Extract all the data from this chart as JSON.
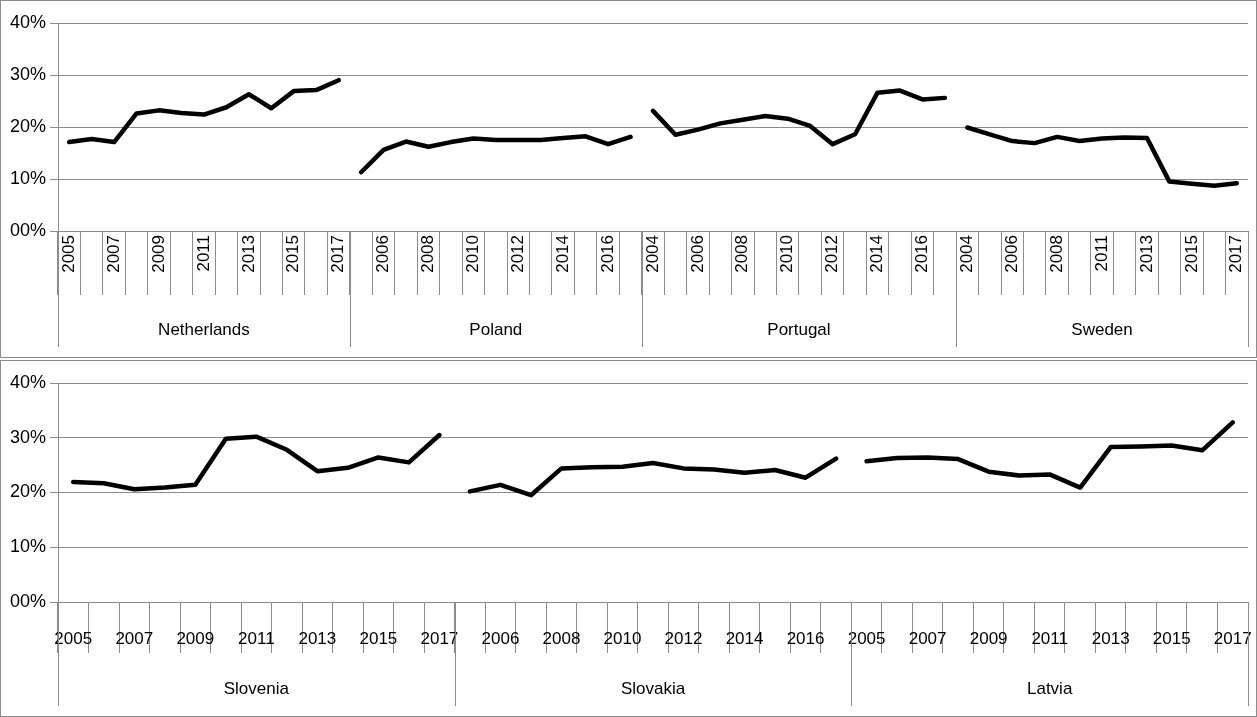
{
  "chart_data": [
    {
      "type": "line",
      "categories": [
        "2005",
        null,
        "2007",
        null,
        "2009",
        null,
        "2011",
        null,
        "2013",
        null,
        "2015",
        null,
        "2017",
        null,
        "2006",
        null,
        "2008",
        null,
        "2010",
        null,
        "2012",
        null,
        "2014",
        null,
        "2016",
        null,
        "2004",
        null,
        "2006",
        null,
        "2008",
        null,
        "2010",
        null,
        "2012",
        null,
        "2014",
        null,
        "2016",
        null,
        "2004",
        null,
        "2006",
        null,
        "2008",
        null,
        "2011",
        null,
        "2013",
        null,
        "2015",
        null,
        "2017"
      ],
      "series": [
        {
          "color": "#000000",
          "values": [
            17.1,
            17.7,
            17.1,
            22.6,
            23.2,
            22.7,
            22.4,
            23.8,
            26.3,
            23.6,
            26.9,
            27.1,
            29.0,
            null,
            null,
            null,
            null,
            null,
            null,
            null,
            null,
            null,
            null,
            null,
            null,
            null,
            null,
            null,
            null,
            null,
            null,
            null,
            null,
            null,
            null,
            null,
            null,
            null,
            null,
            null,
            null,
            null,
            null,
            null,
            null,
            null,
            null,
            null,
            null,
            null,
            null,
            null,
            null
          ]
        },
        {
          "color": "#000000",
          "values": [
            null,
            null,
            null,
            null,
            null,
            null,
            null,
            null,
            null,
            null,
            null,
            null,
            null,
            11.3,
            15.6,
            17.2,
            16.2,
            17.1,
            17.8,
            17.5,
            17.5,
            17.5,
            17.9,
            18.2,
            16.7,
            18.1,
            null,
            null,
            null,
            null,
            null,
            null,
            null,
            null,
            null,
            null,
            null,
            null,
            null,
            null,
            null,
            null,
            null,
            null,
            null,
            null,
            null,
            null,
            null,
            null,
            null,
            null,
            null
          ]
        },
        {
          "color": "#000000",
          "values": [
            null,
            null,
            null,
            null,
            null,
            null,
            null,
            null,
            null,
            null,
            null,
            null,
            null,
            null,
            null,
            null,
            null,
            null,
            null,
            null,
            null,
            null,
            null,
            null,
            null,
            null,
            23.1,
            18.5,
            19.5,
            20.7,
            21.4,
            22.1,
            21.6,
            20.2,
            16.7,
            18.6,
            26.6,
            27.0,
            25.3,
            25.6,
            null,
            null,
            null,
            null,
            null,
            null,
            null,
            null,
            null,
            null,
            null,
            null,
            null
          ]
        },
        {
          "color": "#000000",
          "values": [
            null,
            null,
            null,
            null,
            null,
            null,
            null,
            null,
            null,
            null,
            null,
            null,
            null,
            null,
            null,
            null,
            null,
            null,
            null,
            null,
            null,
            null,
            null,
            null,
            null,
            null,
            null,
            null,
            null,
            null,
            null,
            null,
            null,
            null,
            null,
            null,
            null,
            null,
            null,
            null,
            19.9,
            18.6,
            17.3,
            16.9,
            18.1,
            17.3,
            17.8,
            18.0,
            17.9,
            9.5,
            9.1,
            8.7,
            9.2
          ]
        }
      ],
      "ylim": [
        0,
        40
      ],
      "yticks": [
        {
          "value": 0,
          "label": "00%"
        },
        {
          "value": 10,
          "label": "10%"
        },
        {
          "value": 20,
          "label": "20%"
        },
        {
          "value": 30,
          "label": "30%"
        },
        {
          "value": 40,
          "label": "40%"
        }
      ],
      "annotations": [
        "Netherlands",
        "Poland",
        "Portugal",
        "Sweden"
      ],
      "grid": "y",
      "legend": false,
      "marker": "none",
      "line_style": "solid"
    },
    {
      "type": "line",
      "categories": [
        "2005",
        null,
        "2007",
        null,
        "2009",
        null,
        "2011",
        null,
        "2013",
        null,
        "2015",
        null,
        "2017",
        null,
        "2006",
        null,
        "2008",
        null,
        "2010",
        null,
        "2012",
        null,
        "2014",
        null,
        "2016",
        null,
        "2005",
        null,
        "2007",
        null,
        "2009",
        null,
        "2011",
        null,
        "2013",
        null,
        "2015",
        null,
        "2017"
      ],
      "series": [
        {
          "color": "#000000",
          "values": [
            21.9,
            21.7,
            20.6,
            20.9,
            21.4,
            29.8,
            30.2,
            27.8,
            23.9,
            24.5,
            26.4,
            25.5,
            30.5,
            null,
            null,
            null,
            null,
            null,
            null,
            null,
            null,
            null,
            null,
            null,
            null,
            null,
            null,
            null,
            null,
            null,
            null,
            null,
            null,
            null,
            null,
            null,
            null,
            null,
            null
          ]
        },
        {
          "color": "#000000",
          "values": [
            null,
            null,
            null,
            null,
            null,
            null,
            null,
            null,
            null,
            null,
            null,
            null,
            null,
            20.2,
            21.4,
            19.5,
            24.4,
            24.6,
            24.7,
            25.4,
            24.4,
            24.2,
            23.6,
            24.1,
            22.7,
            26.2,
            null,
            null,
            null,
            null,
            null,
            null,
            null,
            null,
            null,
            null,
            null,
            null,
            null
          ]
        },
        {
          "color": "#000000",
          "values": [
            null,
            null,
            null,
            null,
            null,
            null,
            null,
            null,
            null,
            null,
            null,
            null,
            null,
            null,
            null,
            null,
            null,
            null,
            null,
            null,
            null,
            null,
            null,
            null,
            null,
            null,
            25.7,
            26.3,
            26.4,
            26.1,
            23.8,
            23.1,
            23.3,
            20.9,
            28.3,
            28.4,
            28.6,
            27.7,
            32.8
          ]
        }
      ],
      "ylim": [
        0,
        40
      ],
      "yticks": [
        {
          "value": 0,
          "label": "00%"
        },
        {
          "value": 10,
          "label": "10%"
        },
        {
          "value": 20,
          "label": "20%"
        },
        {
          "value": 30,
          "label": "30%"
        },
        {
          "value": 40,
          "label": "40%"
        }
      ],
      "annotations": [
        "Slovenia",
        "Slovakia",
        "Latvia"
      ],
      "grid": "y",
      "legend": false,
      "marker": "none",
      "line_style": "solid"
    }
  ]
}
